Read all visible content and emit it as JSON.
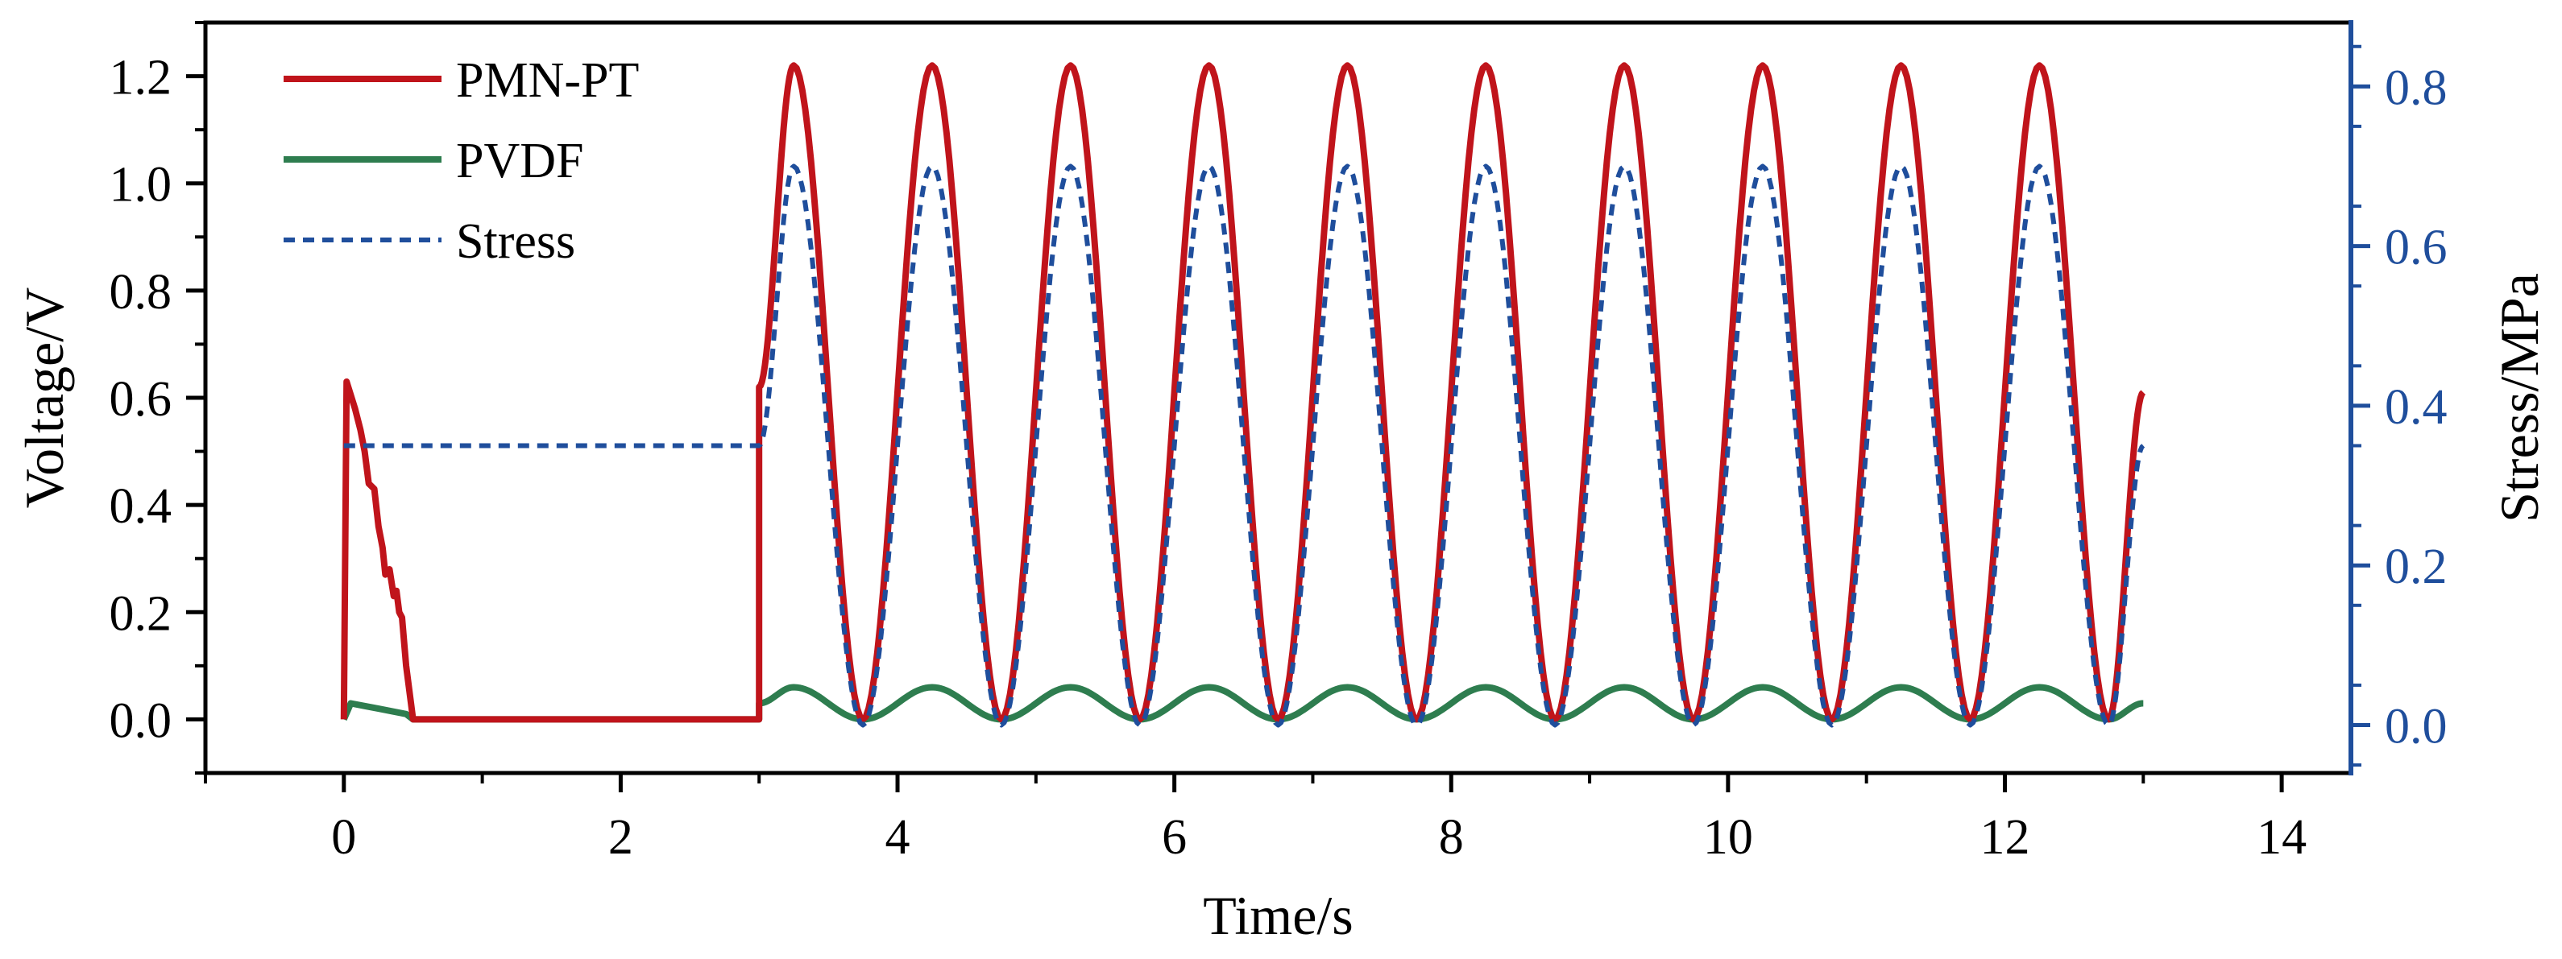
{
  "chart_data": {
    "type": "line",
    "xlabel": "Time/s",
    "ylabel": "Voltage/V",
    "y2label": "Stress/MPa",
    "xlim": [
      -1,
      14.5
    ],
    "ylim": [
      -0.1,
      1.3
    ],
    "y2lim": [
      -0.06,
      0.88
    ],
    "x_ticks": [
      0,
      2,
      4,
      6,
      8,
      10,
      12,
      14
    ],
    "x_tick_labels": [
      "0",
      "2",
      "4",
      "6",
      "8",
      "10",
      "12",
      "14"
    ],
    "y_ticks": [
      0.0,
      0.2,
      0.4,
      0.6,
      0.8,
      1.0,
      1.2
    ],
    "y_tick_labels": [
      "0.0",
      "0.2",
      "0.4",
      "0.6",
      "0.8",
      "1.0",
      "1.2"
    ],
    "y2_ticks": [
      0.0,
      0.2,
      0.4,
      0.6,
      0.8
    ],
    "y2_tick_labels": [
      "0.0",
      "0.2",
      "0.4",
      "0.6",
      "0.8"
    ],
    "grid": false,
    "legend_position": "top-left",
    "series": [
      {
        "name": "PMN-PT",
        "axis": "left",
        "color": "#c0141b",
        "style": "solid",
        "x": [
          0,
          0.02,
          0.08,
          0.12,
          0.15,
          0.18,
          0.22,
          0.25,
          0.28,
          0.3,
          0.33,
          0.36,
          0.38,
          0.4,
          0.42,
          0.45,
          0.5,
          3.0,
          3.0,
          3.25,
          3.75,
          4.25,
          4.75,
          5.25,
          5.75,
          6.25,
          6.75,
          7.25,
          7.75,
          8.25,
          8.75,
          9.25,
          9.75,
          10.25,
          10.75,
          11.25,
          11.75,
          12.25,
          12.75,
          13.0
        ],
        "y": [
          0.0,
          0.63,
          0.58,
          0.54,
          0.5,
          0.44,
          0.43,
          0.36,
          0.32,
          0.27,
          0.28,
          0.23,
          0.24,
          0.2,
          0.19,
          0.1,
          0.0,
          0.0,
          0.62,
          1.22,
          0.0,
          1.22,
          0.0,
          1.22,
          0.0,
          1.22,
          0.0,
          1.22,
          0.0,
          1.22,
          0.0,
          1.22,
          0.0,
          1.22,
          0.0,
          1.22,
          0.0,
          1.22,
          0.0,
          0.61
        ]
      },
      {
        "name": "PVDF",
        "axis": "left",
        "color": "#2e7d4f",
        "style": "solid",
        "x": [
          0,
          0.05,
          0.15,
          0.25,
          0.35,
          0.45,
          0.5,
          3.0,
          3.0,
          3.25,
          3.75,
          4.25,
          4.75,
          5.25,
          5.75,
          6.25,
          6.75,
          7.25,
          7.75,
          8.25,
          8.75,
          9.25,
          9.75,
          10.25,
          10.75,
          11.25,
          11.75,
          12.25,
          12.75,
          13.0
        ],
        "y": [
          0.0,
          0.03,
          0.025,
          0.02,
          0.015,
          0.01,
          0.0,
          0.0,
          0.03,
          0.06,
          0.0,
          0.06,
          0.0,
          0.06,
          0.0,
          0.06,
          0.0,
          0.06,
          0.0,
          0.06,
          0.0,
          0.06,
          0.0,
          0.06,
          0.0,
          0.06,
          0.0,
          0.06,
          0.0,
          0.03
        ]
      },
      {
        "name": "Stress",
        "axis": "right",
        "color": "#1f4e9c",
        "style": "dashed",
        "x": [
          0,
          3.0,
          3.25,
          3.75,
          4.25,
          4.75,
          5.25,
          5.75,
          6.25,
          6.75,
          7.25,
          7.75,
          8.25,
          8.75,
          9.25,
          9.75,
          10.25,
          10.75,
          11.25,
          11.75,
          12.25,
          12.75,
          13.0
        ],
        "y": [
          0.35,
          0.35,
          0.7,
          0.0,
          0.7,
          0.0,
          0.7,
          0.0,
          0.7,
          0.0,
          0.7,
          0.0,
          0.7,
          0.0,
          0.7,
          0.0,
          0.7,
          0.0,
          0.7,
          0.0,
          0.7,
          0.0,
          0.35
        ]
      }
    ]
  },
  "colors": {
    "right_axis": "#1f4e9c",
    "axis": "#000000"
  }
}
